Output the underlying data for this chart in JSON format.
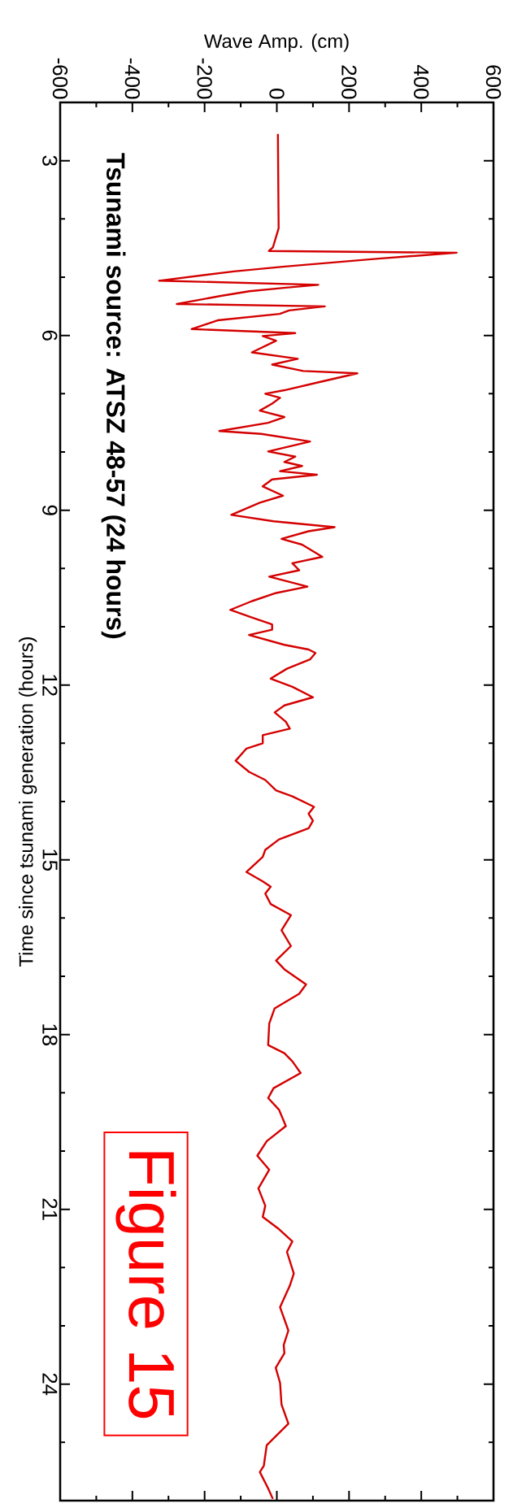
{
  "chart_data": {
    "type": "line",
    "title": "Tsunami source: ATSZ 48-57 (24 hours)",
    "xlabel": "Wave Amp. (cm)",
    "ylabel": "Time since tsunami generation (hours)",
    "annotations": [
      "Figure 15"
    ],
    "x": [
      3,
      5,
      -11,
      -22,
      498,
      282,
      16,
      -119,
      -326,
      115,
      25,
      -76,
      -155,
      -277,
      133,
      34,
      8,
      -164,
      -236,
      51,
      -39,
      -2,
      -69,
      58,
      -13,
      73,
      223,
      118,
      21,
      -32,
      9,
      -13,
      -47,
      21,
      -24,
      -159,
      -43,
      92,
      -24,
      51,
      21,
      70,
      9,
      111,
      -13,
      -39,
      17,
      -47,
      -126,
      -9,
      160,
      88,
      13,
      70,
      126,
      43,
      62,
      -21,
      85,
      -2,
      -69,
      -129,
      -69,
      -13,
      -13,
      -77,
      21,
      88,
      107,
      92,
      28,
      -17,
      43,
      100,
      21,
      -6,
      25,
      36,
      -39,
      -39,
      -84,
      -114,
      -77,
      -32,
      -2,
      43,
      103,
      88,
      100,
      88,
      6,
      -32,
      -39,
      -84,
      -39,
      -17,
      -32,
      -17,
      39,
      13,
      39,
      -2,
      21,
      81,
      62,
      -6,
      -21,
      -24,
      21,
      43,
      66,
      -9,
      -24,
      6,
      25,
      -28,
      -54,
      -21,
      -51,
      -32,
      -39,
      6,
      43,
      28,
      47,
      36,
      9,
      32,
      19,
      21,
      -3,
      9,
      13,
      32,
      -28,
      -36,
      -47,
      -24,
      -11
    ],
    "series": [
      {
        "color": "#d40000",
        "values": [
          2.54,
          4.16,
          4.49,
          4.55,
          4.58,
          4.68,
          4.82,
          4.9,
          5.06,
          5.13,
          5.18,
          5.24,
          5.32,
          5.46,
          5.5,
          5.57,
          5.63,
          5.74,
          5.89,
          5.96,
          6.01,
          6.09,
          6.29,
          6.4,
          6.5,
          6.61,
          6.65,
          6.8,
          6.94,
          7.0,
          7.07,
          7.17,
          7.29,
          7.4,
          7.5,
          7.64,
          7.69,
          7.82,
          7.99,
          8.08,
          8.17,
          8.24,
          8.33,
          8.39,
          8.47,
          8.59,
          8.75,
          8.87,
          9.08,
          9.19,
          9.29,
          9.36,
          9.49,
          9.59,
          9.8,
          9.91,
          10.03,
          10.14,
          10.31,
          10.42,
          10.56,
          10.71,
          10.84,
          10.96,
          11.05,
          11.14,
          11.31,
          11.39,
          11.45,
          11.56,
          11.72,
          11.89,
          12.03,
          12.21,
          12.35,
          12.47,
          12.63,
          12.75,
          12.86,
          13.0,
          13.09,
          13.3,
          13.49,
          13.63,
          13.81,
          13.91,
          14.09,
          14.21,
          14.33,
          14.46,
          14.65,
          14.83,
          14.95,
          15.21,
          15.37,
          15.46,
          15.58,
          15.76,
          15.95,
          16.21,
          16.48,
          16.73,
          16.88,
          17.14,
          17.3,
          17.55,
          17.81,
          18.18,
          18.32,
          18.46,
          18.66,
          18.92,
          19.09,
          19.29,
          19.57,
          19.83,
          20.08,
          20.32,
          20.64,
          20.94,
          21.13,
          21.34,
          21.55,
          21.73,
          22.1,
          22.31,
          22.68,
          23.08,
          23.33,
          23.47,
          23.72,
          23.98,
          24.35,
          24.68,
          25.05,
          25.4,
          25.51,
          25.79,
          25.97
        ]
      }
    ],
    "xlim": [
      -600,
      600
    ],
    "ylim": [
      26,
      2
    ],
    "xticks": [
      -600,
      {
        "value": -500,
        "label": null
      },
      -400,
      {
        "value": -300,
        "label": null
      },
      -200,
      {
        "value": -100,
        "label": null
      },
      0,
      {
        "value": 100,
        "label": null
      },
      200,
      {
        "value": 300,
        "label": null
      },
      400,
      {
        "value": 500,
        "label": null
      },
      600
    ],
    "yticks": [
      3,
      {
        "value": 4,
        "label": null
      },
      {
        "value": 5,
        "label": null
      },
      6,
      {
        "value": 7,
        "label": null
      },
      {
        "value": 8,
        "label": null
      },
      9,
      {
        "value": 10,
        "label": null
      },
      {
        "value": 11,
        "label": null
      },
      12,
      {
        "value": 13,
        "label": null
      },
      {
        "value": 14,
        "label": null
      },
      15,
      {
        "value": 16,
        "label": null
      },
      {
        "value": 17,
        "label": null
      },
      18,
      {
        "value": 19,
        "label": null
      },
      {
        "value": 20,
        "label": null
      },
      21,
      {
        "value": 22,
        "label": null
      },
      {
        "value": 23,
        "label": null
      },
      24,
      {
        "value": 25,
        "label": null
      }
    ],
    "line_style": "solid",
    "grid": false
  }
}
